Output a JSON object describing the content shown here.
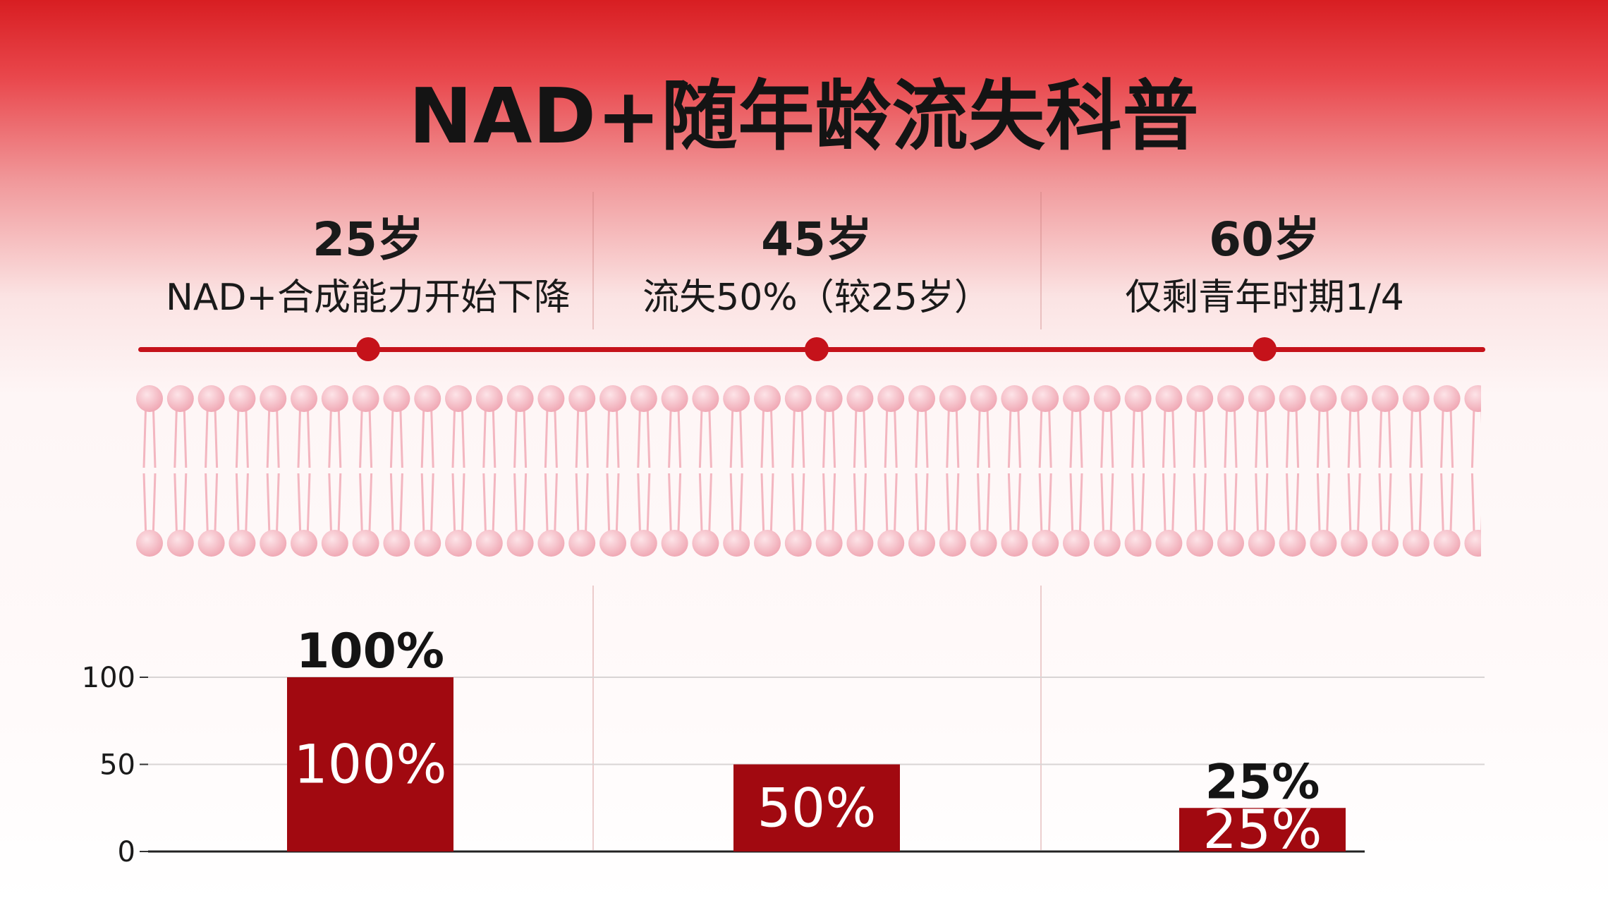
{
  "title": "NAD+随年龄流失科普",
  "columns": [
    {
      "age": "25岁",
      "desc": "NAD+合成能力开始下降"
    },
    {
      "age": "45岁",
      "desc": "流失50%（较25岁）"
    },
    {
      "age": "60岁",
      "desc": "仅剩青年时期1/4"
    }
  ],
  "colors": {
    "accent": "#c5121a",
    "bar": "#a10910",
    "membrane": "#f0a9b5"
  },
  "chart_data": {
    "type": "bar",
    "categories": [
      "25岁",
      "45岁",
      "60岁"
    ],
    "values": [
      100,
      50,
      25
    ],
    "inner_labels": [
      "100%",
      "50%",
      "25%"
    ],
    "top_labels": [
      "100%",
      "",
      "25%"
    ],
    "yticks": [
      0,
      50,
      100
    ],
    "ylim": [
      0,
      100
    ],
    "grid": true
  }
}
